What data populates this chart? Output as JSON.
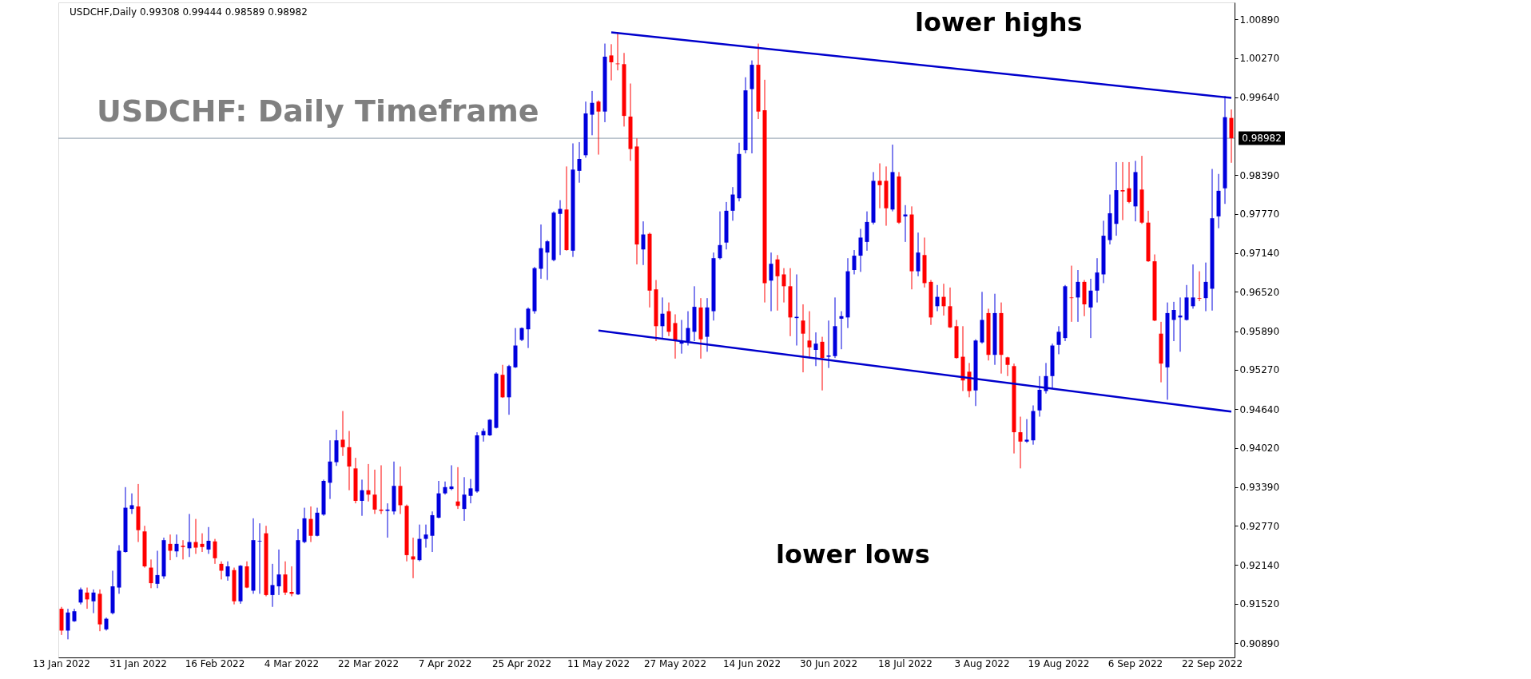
{
  "chart_data": {
    "type": "candlestick",
    "title": "USDCHF: Daily Timeframe",
    "annotations": [
      "USDCHF,Daily  0.99308 0.99444 0.98589 0.98982",
      "lower highs",
      "lower lows"
    ],
    "categories": [
      "13 Jan 2022",
      null,
      null,
      null,
      null,
      null,
      null,
      null,
      null,
      null,
      null,
      null,
      "31 Jan 2022",
      null,
      null,
      null,
      null,
      null,
      null,
      null,
      null,
      null,
      null,
      null,
      "16 Feb 2022",
      null,
      null,
      null,
      null,
      null,
      null,
      null,
      null,
      null,
      null,
      null,
      "4 Mar 2022",
      null,
      null,
      null,
      null,
      null,
      null,
      null,
      null,
      null,
      null,
      null,
      "22 Mar 2022",
      null,
      null,
      null,
      null,
      null,
      null,
      null,
      null,
      null,
      null,
      null,
      "7 Apr 2022",
      null,
      null,
      null,
      null,
      null,
      null,
      null,
      null,
      null,
      null,
      null,
      "25 Apr 2022",
      null,
      null,
      null,
      null,
      null,
      null,
      null,
      null,
      null,
      null,
      null,
      "11 May 2022",
      null,
      null,
      null,
      null,
      null,
      null,
      null,
      null,
      null,
      null,
      null,
      "27 May 2022",
      null,
      null,
      null,
      null,
      null,
      null,
      null,
      null,
      null,
      null,
      null,
      "14 Jun 2022",
      null,
      null,
      null,
      null,
      null,
      null,
      null,
      null,
      null,
      null,
      null,
      "30 Jun 2022",
      null,
      null,
      null,
      null,
      null,
      null,
      null,
      null,
      null,
      null,
      null,
      "18 Jul 2022",
      null,
      null,
      null,
      null,
      null,
      null,
      null,
      null,
      null,
      null,
      null,
      "3 Aug 2022",
      null,
      null,
      null,
      null,
      null,
      null,
      null,
      null,
      null,
      null,
      null,
      "19 Aug 2022",
      null,
      null,
      null,
      null,
      null,
      null,
      null,
      null,
      null,
      null,
      null,
      "6 Sep 2022",
      null,
      null,
      null,
      null,
      null,
      null,
      null,
      null,
      null,
      null,
      null,
      "22 Sep 2022",
      null,
      null,
      null
    ],
    "ohlc": [
      [
        0.9144,
        0.9147,
        0.9102,
        0.9109
      ],
      [
        0.9109,
        0.9144,
        0.9095,
        0.9138
      ],
      [
        0.9124,
        0.9144,
        0.9123,
        0.914
      ],
      [
        0.9154,
        0.9178,
        0.9151,
        0.9175
      ],
      [
        0.917,
        0.9178,
        0.9144,
        0.9159
      ],
      [
        0.9156,
        0.9175,
        0.9137,
        0.917
      ],
      [
        0.9168,
        0.9175,
        0.9108,
        0.9119
      ],
      [
        0.9111,
        0.913,
        0.9109,
        0.9128
      ],
      [
        0.9137,
        0.9205,
        0.9135,
        0.918
      ],
      [
        0.9178,
        0.9246,
        0.9168,
        0.9237
      ],
      [
        0.9235,
        0.9339,
        0.9234,
        0.9306
      ],
      [
        0.9304,
        0.9329,
        0.9296,
        0.931
      ],
      [
        0.9308,
        0.9344,
        0.9251,
        0.927
      ],
      [
        0.9268,
        0.9277,
        0.921,
        0.9212
      ],
      [
        0.921,
        0.9223,
        0.9177,
        0.9185
      ],
      [
        0.9184,
        0.9237,
        0.9177,
        0.9198
      ],
      [
        0.9196,
        0.9258,
        0.9192,
        0.9254
      ],
      [
        0.9248,
        0.9263,
        0.9222,
        0.9237
      ],
      [
        0.9236,
        0.9263,
        0.9227,
        0.9248
      ],
      [
        0.9245,
        0.9254,
        0.9223,
        0.9243
      ],
      [
        0.9241,
        0.9296,
        0.9227,
        0.9251
      ],
      [
        0.9251,
        0.9288,
        0.9232,
        0.9242
      ],
      [
        0.9248,
        0.9265,
        0.9235,
        0.9243
      ],
      [
        0.9239,
        0.9275,
        0.9232,
        0.9253
      ],
      [
        0.9252,
        0.9256,
        0.9216,
        0.9225
      ],
      [
        0.9216,
        0.922,
        0.9191,
        0.9205
      ],
      [
        0.9196,
        0.922,
        0.9189,
        0.9212
      ],
      [
        0.9206,
        0.921,
        0.9151,
        0.9156
      ],
      [
        0.9156,
        0.9214,
        0.9152,
        0.9213
      ],
      [
        0.9212,
        0.922,
        0.9177,
        0.9178
      ],
      [
        0.9173,
        0.9289,
        0.9168,
        0.9254
      ],
      [
        0.9252,
        0.9281,
        0.9168,
        0.9253
      ],
      [
        0.9265,
        0.9277,
        0.9164,
        0.9166
      ],
      [
        0.9166,
        0.9216,
        0.9147,
        0.9182
      ],
      [
        0.918,
        0.9239,
        0.9166,
        0.9199
      ],
      [
        0.9199,
        0.922,
        0.9166,
        0.917
      ],
      [
        0.9171,
        0.9212,
        0.9164,
        0.9168
      ],
      [
        0.9167,
        0.9272,
        0.9166,
        0.9254
      ],
      [
        0.9251,
        0.9306,
        0.9249,
        0.9289
      ],
      [
        0.9288,
        0.9308,
        0.9251,
        0.9261
      ],
      [
        0.9261,
        0.9306,
        0.926,
        0.9298
      ],
      [
        0.9295,
        0.9351,
        0.9293,
        0.9349
      ],
      [
        0.9346,
        0.9414,
        0.932,
        0.938
      ],
      [
        0.9379,
        0.9431,
        0.9373,
        0.9414
      ],
      [
        0.9415,
        0.9461,
        0.9389,
        0.9403
      ],
      [
        0.9403,
        0.9429,
        0.9334,
        0.9372
      ],
      [
        0.9369,
        0.9386,
        0.9313,
        0.9317
      ],
      [
        0.9317,
        0.9351,
        0.9293,
        0.9334
      ],
      [
        0.9334,
        0.9376,
        0.9316,
        0.9327
      ],
      [
        0.9327,
        0.9367,
        0.9296,
        0.9303
      ],
      [
        0.9303,
        0.9374,
        0.9296,
        0.9301
      ],
      [
        0.9301,
        0.9313,
        0.9258,
        0.9303
      ],
      [
        0.93,
        0.938,
        0.9295,
        0.9341
      ],
      [
        0.9341,
        0.9372,
        0.9296,
        0.931
      ],
      [
        0.9309,
        0.9311,
        0.922,
        0.923
      ],
      [
        0.9228,
        0.9258,
        0.9193,
        0.9223
      ],
      [
        0.9222,
        0.9279,
        0.922,
        0.9256
      ],
      [
        0.9256,
        0.9279,
        0.9242,
        0.9263
      ],
      [
        0.9261,
        0.93,
        0.9235,
        0.9294
      ],
      [
        0.929,
        0.9349,
        0.9289,
        0.9329
      ],
      [
        0.9329,
        0.9348,
        0.9327,
        0.9339
      ],
      [
        0.9336,
        0.9374,
        0.9334,
        0.934
      ],
      [
        0.9316,
        0.9371,
        0.9304,
        0.9309
      ],
      [
        0.9304,
        0.9355,
        0.9285,
        0.9327
      ],
      [
        0.9325,
        0.9352,
        0.9313,
        0.9337
      ],
      [
        0.9332,
        0.9427,
        0.933,
        0.9422
      ],
      [
        0.9422,
        0.9433,
        0.9412,
        0.9429
      ],
      [
        0.9422,
        0.9448,
        0.9421,
        0.9447
      ],
      [
        0.9434,
        0.9523,
        0.9433,
        0.9521
      ],
      [
        0.9519,
        0.9535,
        0.9482,
        0.9483
      ],
      [
        0.9483,
        0.9535,
        0.9455,
        0.9533
      ],
      [
        0.9531,
        0.9594,
        0.953,
        0.9566
      ],
      [
        0.9575,
        0.9595,
        0.9573,
        0.9594
      ],
      [
        0.9592,
        0.9627,
        0.9562,
        0.9625
      ],
      [
        0.9621,
        0.9692,
        0.9617,
        0.969
      ],
      [
        0.9689,
        0.976,
        0.9673,
        0.9722
      ],
      [
        0.9715,
        0.9735,
        0.9671,
        0.9733
      ],
      [
        0.9703,
        0.9781,
        0.9701,
        0.9779
      ],
      [
        0.9777,
        0.9799,
        0.9711,
        0.9785
      ],
      [
        0.9784,
        0.9853,
        0.9718,
        0.9719
      ],
      [
        0.9718,
        0.989,
        0.9708,
        0.9848
      ],
      [
        0.9846,
        0.9892,
        0.9827,
        0.9865
      ],
      [
        0.9871,
        0.9957,
        0.9867,
        0.9938
      ],
      [
        0.9936,
        0.9974,
        0.9903,
        0.9955
      ],
      [
        0.9957,
        0.9959,
        0.9872,
        0.9941
      ],
      [
        0.9941,
        1.005,
        0.9924,
        1.0029
      ],
      [
        1.0031,
        1.0049,
        0.9991,
        1.002
      ],
      [
        1.0018,
        1.0068,
        1.0007,
        1.0017
      ],
      [
        1.0017,
        1.0035,
        0.9917,
        0.9934
      ],
      [
        0.9933,
        0.9986,
        0.9862,
        0.9881
      ],
      [
        0.9885,
        0.9898,
        0.9696,
        0.9728
      ],
      [
        0.972,
        0.9765,
        0.9695,
        0.9744
      ],
      [
        0.9745,
        0.9747,
        0.9627,
        0.9654
      ],
      [
        0.9656,
        0.9671,
        0.9573,
        0.9597
      ],
      [
        0.9597,
        0.9643,
        0.9576,
        0.9617
      ],
      [
        0.9621,
        0.9635,
        0.9581,
        0.9588
      ],
      [
        0.9602,
        0.9616,
        0.9545,
        0.9573
      ],
      [
        0.9569,
        0.9607,
        0.9553,
        0.9573
      ],
      [
        0.9573,
        0.9621,
        0.9566,
        0.9594
      ],
      [
        0.9588,
        0.9661,
        0.9573,
        0.9628
      ],
      [
        0.9627,
        0.9642,
        0.9545,
        0.9576
      ],
      [
        0.958,
        0.9642,
        0.9556,
        0.9627
      ],
      [
        0.9621,
        0.9715,
        0.9606,
        0.9706
      ],
      [
        0.9706,
        0.9781,
        0.9704,
        0.9727
      ],
      [
        0.9731,
        0.9796,
        0.972,
        0.9782
      ],
      [
        0.9782,
        0.982,
        0.9766,
        0.9808
      ],
      [
        0.9802,
        0.9891,
        0.9797,
        0.9873
      ],
      [
        0.9879,
        0.9996,
        0.9874,
        0.9975
      ],
      [
        0.9977,
        1.0023,
        0.9874,
        1.0016
      ],
      [
        1.0016,
        1.005,
        0.9929,
        0.9941
      ],
      [
        0.9943,
        0.9992,
        0.9635,
        0.9666
      ],
      [
        0.967,
        0.9715,
        0.9621,
        0.9697
      ],
      [
        0.9704,
        0.9711,
        0.9622,
        0.9677
      ],
      [
        0.968,
        0.969,
        0.9635,
        0.9661
      ],
      [
        0.9661,
        0.969,
        0.9581,
        0.9611
      ],
      [
        0.961,
        0.968,
        0.9566,
        0.9612
      ],
      [
        0.9606,
        0.9632,
        0.9523,
        0.9585
      ],
      [
        0.9574,
        0.9621,
        0.9545,
        0.9563
      ],
      [
        0.9559,
        0.9587,
        0.9533,
        0.9569
      ],
      [
        0.9572,
        0.958,
        0.9494,
        0.9546
      ],
      [
        0.9548,
        0.9606,
        0.953,
        0.955
      ],
      [
        0.9549,
        0.9643,
        0.9546,
        0.9597
      ],
      [
        0.9609,
        0.9621,
        0.956,
        0.9613
      ],
      [
        0.9611,
        0.9706,
        0.9594,
        0.9685
      ],
      [
        0.9687,
        0.9719,
        0.968,
        0.971
      ],
      [
        0.971,
        0.9753,
        0.9684,
        0.9739
      ],
      [
        0.9732,
        0.9781,
        0.9718,
        0.9764
      ],
      [
        0.9763,
        0.9844,
        0.976,
        0.983
      ],
      [
        0.983,
        0.9858,
        0.9786,
        0.9823
      ],
      [
        0.983,
        0.9853,
        0.9758,
        0.9786
      ],
      [
        0.9784,
        0.9888,
        0.9781,
        0.9844
      ],
      [
        0.9837,
        0.9844,
        0.9761,
        0.9763
      ],
      [
        0.9773,
        0.9791,
        0.9732,
        0.9776
      ],
      [
        0.9776,
        0.9789,
        0.9656,
        0.9685
      ],
      [
        0.9685,
        0.9747,
        0.9677,
        0.9715
      ],
      [
        0.9711,
        0.9739,
        0.9659,
        0.9666
      ],
      [
        0.9668,
        0.9671,
        0.9599,
        0.9611
      ],
      [
        0.9629,
        0.9663,
        0.9621,
        0.9644
      ],
      [
        0.9644,
        0.9665,
        0.9614,
        0.9629
      ],
      [
        0.9629,
        0.9659,
        0.9594,
        0.9595
      ],
      [
        0.9597,
        0.9607,
        0.9545,
        0.9546
      ],
      [
        0.9548,
        0.9597,
        0.9493,
        0.951
      ],
      [
        0.9524,
        0.9538,
        0.9483,
        0.9493
      ],
      [
        0.9494,
        0.9576,
        0.9469,
        0.9574
      ],
      [
        0.9571,
        0.9652,
        0.9569,
        0.9607
      ],
      [
        0.9618,
        0.9625,
        0.9542,
        0.9551
      ],
      [
        0.9551,
        0.9649,
        0.9535,
        0.9618
      ],
      [
        0.9618,
        0.9635,
        0.9521,
        0.9551
      ],
      [
        0.9547,
        0.9548,
        0.9517,
        0.9535
      ],
      [
        0.9533,
        0.9537,
        0.9393,
        0.9427
      ],
      [
        0.9427,
        0.9452,
        0.9369,
        0.9412
      ],
      [
        0.9412,
        0.9448,
        0.941,
        0.9415
      ],
      [
        0.9414,
        0.947,
        0.9407,
        0.9461
      ],
      [
        0.9462,
        0.9517,
        0.9452,
        0.9495
      ],
      [
        0.9493,
        0.9538,
        0.9489,
        0.9517
      ],
      [
        0.9517,
        0.9569,
        0.9497,
        0.9566
      ],
      [
        0.9567,
        0.9597,
        0.9552,
        0.9588
      ],
      [
        0.9578,
        0.9663,
        0.9573,
        0.9661
      ],
      [
        0.9643,
        0.9694,
        0.9604,
        0.9642
      ],
      [
        0.9643,
        0.9687,
        0.9604,
        0.9668
      ],
      [
        0.9668,
        0.9671,
        0.9613,
        0.9632
      ],
      [
        0.9627,
        0.9673,
        0.9578,
        0.9654
      ],
      [
        0.9654,
        0.9706,
        0.9635,
        0.9683
      ],
      [
        0.968,
        0.9766,
        0.9666,
        0.9742
      ],
      [
        0.9735,
        0.9808,
        0.9728,
        0.9778
      ],
      [
        0.9761,
        0.986,
        0.9742,
        0.9815
      ],
      [
        0.9815,
        0.986,
        0.9767,
        0.9813
      ],
      [
        0.9818,
        0.986,
        0.9794,
        0.9796
      ],
      [
        0.9789,
        0.9862,
        0.9765,
        0.9844
      ],
      [
        0.9816,
        0.987,
        0.9761,
        0.9763
      ],
      [
        0.9763,
        0.9782,
        0.97,
        0.9701
      ],
      [
        0.9701,
        0.9712,
        0.9605,
        0.9606
      ],
      [
        0.9585,
        0.9604,
        0.9507,
        0.9537
      ],
      [
        0.9531,
        0.9635,
        0.9479,
        0.9618
      ],
      [
        0.9607,
        0.9636,
        0.9573,
        0.9623
      ],
      [
        0.9611,
        0.9643,
        0.9556,
        0.9614
      ],
      [
        0.9607,
        0.9663,
        0.9606,
        0.9643
      ],
      [
        0.9629,
        0.9696,
        0.9625,
        0.9643
      ],
      [
        0.9642,
        0.9685,
        0.9637,
        0.9641
      ],
      [
        0.9642,
        0.9699,
        0.9621,
        0.9668
      ],
      [
        0.9657,
        0.9849,
        0.9622,
        0.977
      ],
      [
        0.9773,
        0.9841,
        0.9754,
        0.9814
      ],
      [
        0.9818,
        0.9966,
        0.9793,
        0.9932
      ],
      [
        0.99308,
        0.99444,
        0.98589,
        0.98982
      ]
    ],
    "colors": [
      "#ff0000",
      "#0000dd",
      "#0000dd",
      "#0000dd",
      "#ff0000",
      "#0000dd",
      "#ff0000",
      "#0000dd",
      "#0000dd",
      "#0000dd",
      "#0000dd",
      "#0000dd",
      "#ff0000",
      "#ff0000",
      "#ff0000",
      "#0000dd",
      "#0000dd",
      "#ff0000",
      "#0000dd",
      "#ff0000",
      "#0000dd",
      "#ff0000",
      "#ff0000",
      "#0000dd",
      "#ff0000",
      "#ff0000",
      "#0000dd",
      "#ff0000",
      "#0000dd",
      "#ff0000",
      "#0000dd",
      "#0000dd",
      "#ff0000",
      "#0000dd",
      "#0000dd",
      "#ff0000",
      "#ff0000",
      "#0000dd",
      "#0000dd",
      "#ff0000",
      "#0000dd",
      "#0000dd",
      "#0000dd",
      "#0000dd",
      "#ff0000",
      "#ff0000",
      "#ff0000",
      "#0000dd",
      "#ff0000",
      "#ff0000",
      "#ff0000",
      "#0000dd",
      "#0000dd",
      "#ff0000",
      "#ff0000",
      "#ff0000",
      "#0000dd",
      "#0000dd",
      "#0000dd",
      "#0000dd",
      "#0000dd",
      "#0000dd",
      "#ff0000",
      "#0000dd",
      "#0000dd",
      "#0000dd",
      "#0000dd",
      "#0000dd",
      "#0000dd",
      "#ff0000",
      "#0000dd",
      "#0000dd",
      "#0000dd",
      "#0000dd",
      "#0000dd",
      "#0000dd",
      "#0000dd",
      "#0000dd",
      "#0000dd",
      "#ff0000",
      "#0000dd",
      "#0000dd",
      "#0000dd",
      "#0000dd",
      "#ff0000",
      "#0000dd",
      "#ff0000",
      "#ff0000",
      "#ff0000",
      "#ff0000",
      "#ff0000",
      "#0000dd",
      "#ff0000",
      "#ff0000",
      "#0000dd",
      "#ff0000",
      "#ff0000",
      "#0000dd",
      "#0000dd",
      "#0000dd",
      "#ff0000",
      "#0000dd",
      "#0000dd",
      "#0000dd",
      "#0000dd",
      "#0000dd",
      "#0000dd",
      "#0000dd",
      "#0000dd",
      "#ff0000",
      "#ff0000",
      "#0000dd",
      "#ff0000",
      "#ff0000",
      "#ff0000",
      "#0000dd",
      "#ff0000",
      "#ff0000",
      "#0000dd",
      "#ff0000",
      "#0000dd",
      "#0000dd",
      "#0000dd",
      "#0000dd",
      "#0000dd",
      "#0000dd",
      "#0000dd",
      "#0000dd",
      "#ff0000",
      "#ff0000",
      "#0000dd",
      "#ff0000",
      "#0000dd",
      "#ff0000",
      "#0000dd",
      "#ff0000",
      "#ff0000",
      "#0000dd",
      "#ff0000",
      "#ff0000",
      "#ff0000",
      "#ff0000",
      "#ff0000",
      "#0000dd",
      "#0000dd",
      "#ff0000",
      "#0000dd",
      "#ff0000",
      "#ff0000",
      "#ff0000",
      "#ff0000",
      "#0000dd",
      "#0000dd",
      "#0000dd",
      "#0000dd",
      "#0000dd",
      "#0000dd",
      "#0000dd",
      "#ff0000",
      "#0000dd",
      "#ff0000",
      "#0000dd",
      "#0000dd",
      "#0000dd",
      "#0000dd",
      "#0000dd",
      "#ff0000",
      "#ff0000",
      "#0000dd",
      "#ff0000",
      "#ff0000",
      "#ff0000",
      "#ff0000",
      "#0000dd",
      "#0000dd",
      "#0000dd",
      "#0000dd",
      "#0000dd",
      "#ff0000",
      "#0000dd",
      "#0000dd",
      "#0000dd",
      "#0000dd",
      "#ff0000"
    ],
    "series": [
      {
        "type": "line",
        "color": "#0000cc",
        "values": [
          null,
          null,
          null,
          null,
          null,
          null,
          null,
          null,
          null,
          null,
          null,
          null,
          null,
          null,
          null,
          null,
          null,
          null,
          null,
          null,
          null,
          null,
          null,
          null,
          null,
          null,
          null,
          null,
          null,
          null,
          null,
          null,
          null,
          null,
          null,
          null,
          null,
          null,
          null,
          null,
          null,
          null,
          null,
          null,
          null,
          null,
          null,
          null,
          null,
          null,
          null,
          null,
          null,
          null,
          null,
          null,
          null,
          null,
          null,
          null,
          null,
          null,
          null,
          null,
          null,
          null,
          null,
          null,
          null,
          null,
          null,
          null,
          null,
          null,
          null,
          null,
          null,
          null,
          null,
          null,
          null,
          null,
          null,
          null,
          null,
          null,
          1.0068,
          null,
          null,
          null,
          null,
          null,
          null,
          null,
          null,
          null,
          null,
          null,
          null,
          null,
          null,
          null,
          null,
          null,
          null,
          null,
          null,
          null,
          null,
          null,
          null,
          null,
          null,
          null,
          null,
          null,
          null,
          null,
          null,
          null,
          null,
          null,
          null,
          null,
          null,
          null,
          null,
          null,
          null,
          null,
          null,
          null,
          null,
          null,
          null,
          null,
          null,
          null,
          null,
          null,
          null,
          null,
          null,
          null,
          null,
          null,
          null,
          null,
          null,
          null,
          null,
          null,
          null,
          null,
          null,
          null,
          null,
          null,
          null,
          null,
          null,
          null,
          null,
          null,
          null,
          null,
          null,
          null,
          null,
          null,
          null,
          null,
          null,
          null,
          null,
          null,
          null,
          null,
          null,
          null,
          null,
          null,
          null,
          0.9963
        ]
      },
      {
        "type": "line",
        "color": "#0000cc",
        "values": [
          null,
          null,
          null,
          null,
          null,
          null,
          null,
          null,
          null,
          null,
          null,
          null,
          null,
          null,
          null,
          null,
          null,
          null,
          null,
          null,
          null,
          null,
          null,
          null,
          null,
          null,
          null,
          null,
          null,
          null,
          null,
          null,
          null,
          null,
          null,
          null,
          null,
          null,
          null,
          null,
          null,
          null,
          null,
          null,
          null,
          null,
          null,
          null,
          null,
          null,
          null,
          null,
          null,
          null,
          null,
          null,
          null,
          null,
          null,
          null,
          null,
          null,
          null,
          null,
          null,
          null,
          null,
          null,
          null,
          null,
          null,
          null,
          null,
          null,
          null,
          null,
          null,
          null,
          null,
          null,
          null,
          null,
          null,
          null,
          0.959,
          null,
          null,
          null,
          null,
          null,
          null,
          null,
          null,
          null,
          null,
          null,
          null,
          null,
          null,
          null,
          null,
          null,
          null,
          null,
          null,
          null,
          null,
          null,
          null,
          null,
          null,
          null,
          null,
          null,
          null,
          null,
          null,
          null,
          null,
          null,
          null,
          null,
          null,
          null,
          null,
          null,
          null,
          null,
          null,
          null,
          null,
          null,
          null,
          null,
          null,
          null,
          null,
          null,
          null,
          null,
          null,
          null,
          null,
          null,
          null,
          null,
          null,
          null,
          null,
          null,
          null,
          null,
          null,
          null,
          null,
          null,
          null,
          null,
          null,
          null,
          null,
          null,
          null,
          null,
          null,
          null,
          null,
          null,
          null,
          null,
          null,
          null,
          null,
          null,
          null,
          null,
          null,
          null,
          null,
          null,
          null,
          null,
          null,
          0.946
        ]
      }
    ],
    "ylim": [
      0.9066,
      1.0116
    ],
    "yticks": [
      {
        "value": 1.0089,
        "label": "1.00890"
      },
      {
        "value": 1.0027,
        "label": "1.00270"
      },
      {
        "value": 0.9964,
        "label": "0.99640"
      },
      {
        "value": 0.9839,
        "label": "0.98390"
      },
      {
        "value": 0.9777,
        "label": "0.97770"
      },
      {
        "value": 0.9714,
        "label": "0.97140"
      },
      {
        "value": 0.9652,
        "label": "0.96520"
      },
      {
        "value": 0.9589,
        "label": "0.95890"
      },
      {
        "value": 0.9527,
        "label": "0.95270"
      },
      {
        "value": 0.9464,
        "label": "0.94640"
      },
      {
        "value": 0.9402,
        "label": "0.94020"
      },
      {
        "value": 0.9339,
        "label": "0.93390"
      },
      {
        "value": 0.9277,
        "label": "0.92770"
      },
      {
        "value": 0.9214,
        "label": "0.92140"
      },
      {
        "value": 0.9152,
        "label": "0.91520"
      },
      {
        "value": 0.9089,
        "label": "0.90890"
      }
    ],
    "ref_lines": [
      {
        "axis": "y",
        "value": 0.98982,
        "label": "0.98982",
        "color": "#8a9aaa"
      }
    ]
  }
}
